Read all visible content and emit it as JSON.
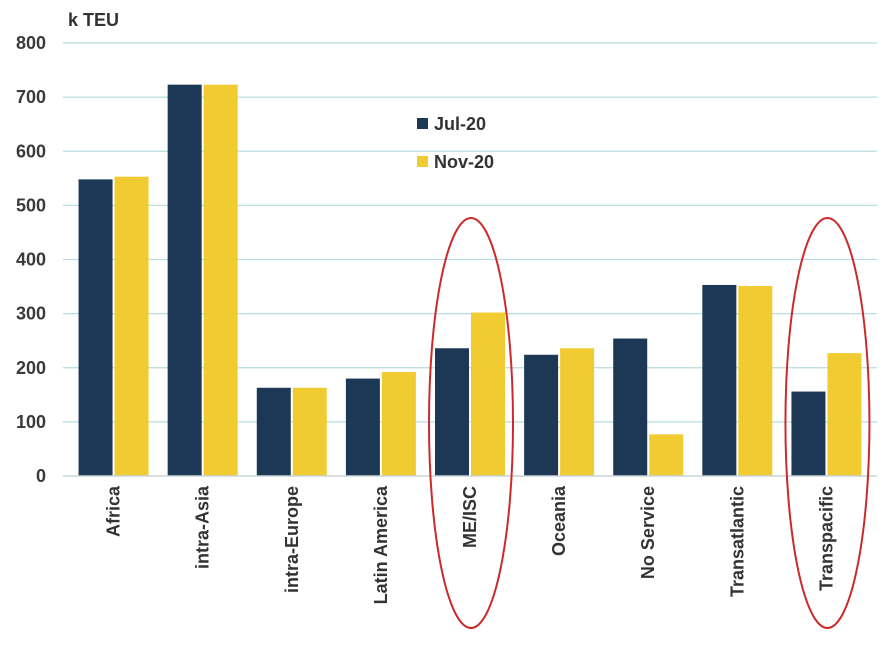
{
  "chart_data": {
    "type": "bar",
    "ylabel": "k TEU",
    "ylim": [
      0,
      800
    ],
    "yticks": [
      "0",
      "100",
      "200",
      "300",
      "400",
      "500",
      "600",
      "700",
      "800"
    ],
    "categories": [
      "Africa",
      "intra-Asia",
      "intra-Europe",
      "Latin America",
      "ME/ISC",
      "Oceania",
      "No Service",
      "Transatlantic",
      "Transpacific"
    ],
    "series": [
      {
        "name": "Jul-20",
        "color": "#1d3855",
        "values": [
          548,
          723,
          163,
          180,
          236,
          224,
          254,
          353,
          156
        ]
      },
      {
        "name": "Nov-20",
        "color": "#f0cb32",
        "values": [
          553,
          723,
          163,
          192,
          302,
          236,
          77,
          351,
          227
        ]
      }
    ],
    "grid": true,
    "gridline_color": "#b7dce1",
    "legend_position": "top-center",
    "highlighted_categories": [
      "ME/ISC",
      "Transpacific"
    ],
    "highlight_color": "#cc2a2a"
  }
}
